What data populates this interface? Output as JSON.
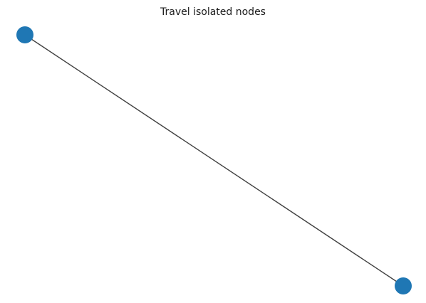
{
  "figure": {
    "title": "Travel isolated nodes"
  },
  "graph": {
    "node_color": "#1f77b4",
    "edge_color": "#404040",
    "nodes": [
      {
        "id": "node-a"
      },
      {
        "id": "node-b"
      }
    ],
    "edges": [
      {
        "source": "node-a",
        "target": "node-b"
      }
    ]
  }
}
